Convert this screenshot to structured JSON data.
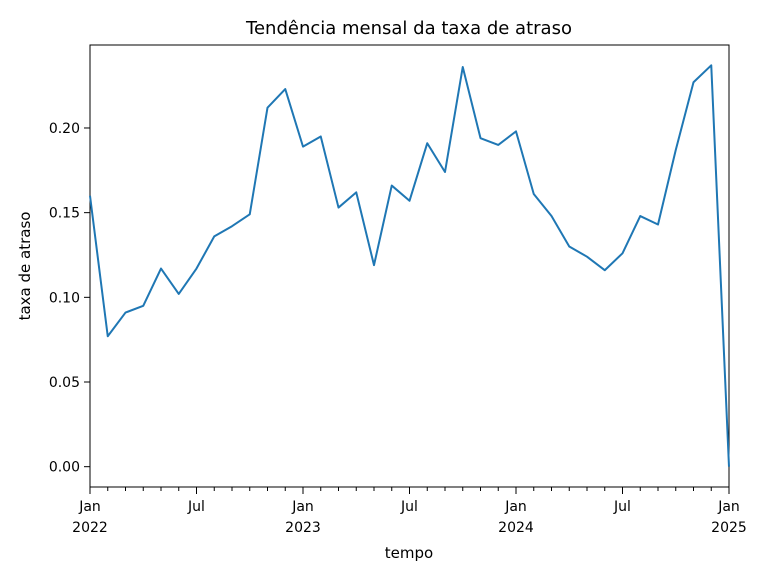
{
  "chart_data": {
    "type": "line",
    "title": "Tendência mensal da taxa de atraso",
    "xlabel": "tempo",
    "ylabel": "taxa de atraso",
    "ylim": [
      -0.012,
      0.249
    ],
    "grid": false,
    "y_ticks": [
      "0.00",
      "0.05",
      "0.10",
      "0.15",
      "0.20"
    ],
    "x_ticks": [
      {
        "index": 0,
        "label": "Jan",
        "year": "2022"
      },
      {
        "index": 6,
        "label": "Jul",
        "year": ""
      },
      {
        "index": 12,
        "label": "Jan",
        "year": "2023"
      },
      {
        "index": 18,
        "label": "Jul",
        "year": ""
      },
      {
        "index": 24,
        "label": "Jan",
        "year": "2024"
      },
      {
        "index": 30,
        "label": "Jul",
        "year": ""
      },
      {
        "index": 36,
        "label": "Jan",
        "year": "2025"
      }
    ],
    "series": [
      {
        "color": "#1f77b4",
        "x": [
          "2022-01",
          "2022-02",
          "2022-03",
          "2022-04",
          "2022-05",
          "2022-06",
          "2022-07",
          "2022-08",
          "2022-09",
          "2022-10",
          "2022-11",
          "2022-12",
          "2023-01",
          "2023-02",
          "2023-03",
          "2023-04",
          "2023-05",
          "2023-06",
          "2023-07",
          "2023-08",
          "2023-09",
          "2023-10",
          "2023-11",
          "2023-12",
          "2024-01",
          "2024-02",
          "2024-03",
          "2024-04",
          "2024-05",
          "2024-06",
          "2024-07",
          "2024-08",
          "2024-09",
          "2024-10",
          "2024-11",
          "2024-12",
          "2025-01"
        ],
        "values": [
          0.16,
          0.077,
          0.091,
          0.095,
          0.117,
          0.102,
          0.117,
          0.136,
          0.142,
          0.149,
          0.212,
          0.223,
          0.189,
          0.195,
          0.153,
          0.162,
          0.119,
          0.166,
          0.157,
          0.191,
          0.174,
          0.236,
          0.194,
          0.19,
          0.198,
          0.161,
          0.148,
          0.13,
          0.124,
          0.116,
          0.126,
          0.148,
          0.143,
          0.187,
          0.227,
          0.237,
          0.0
        ]
      }
    ]
  }
}
